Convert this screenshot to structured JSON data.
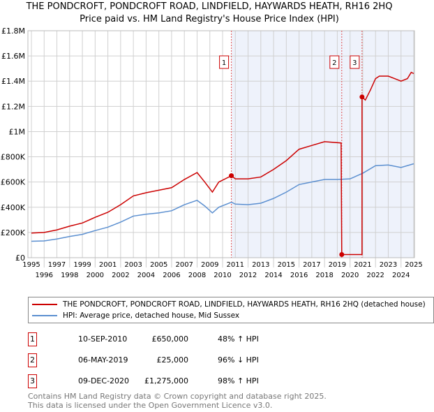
{
  "title_line1": "THE PONDCROFT, PONDCROFT ROAD, LINDFIELD, HAYWARDS HEATH, RH16 2HQ",
  "title_line2": "Price paid vs. HM Land Registry's House Price Index (HPI)",
  "chart_data": {
    "type": "line",
    "title": "Price paid vs. HM Land Registry's House Price Index (HPI)",
    "xlim": [
      1995,
      2025
    ],
    "ylim": [
      0,
      1800000
    ],
    "yticks": [
      {
        "v": 0,
        "label": "£0"
      },
      {
        "v": 200000,
        "label": "£200K"
      },
      {
        "v": 400000,
        "label": "£400K"
      },
      {
        "v": 600000,
        "label": "£600K"
      },
      {
        "v": 800000,
        "label": "£800K"
      },
      {
        "v": 1000000,
        "label": "£1M"
      },
      {
        "v": 1200000,
        "label": "£1.2M"
      },
      {
        "v": 1400000,
        "label": "£1.4M"
      },
      {
        "v": 1600000,
        "label": "£1.6M"
      },
      {
        "v": 1800000,
        "label": "£1.8M"
      }
    ],
    "xticks": [
      "1995",
      "1996",
      "1997",
      "1998",
      "1999",
      "2000",
      "2001",
      "2002",
      "2003",
      "2004",
      "2005",
      "2006",
      "2007",
      "2008",
      "2009",
      "2010",
      "2011",
      "2012",
      "2013",
      "2014",
      "2015",
      "2016",
      "2017",
      "2018",
      "2019",
      "2020",
      "2021",
      "2022",
      "2023",
      "2024",
      "2025"
    ],
    "series": [
      {
        "name": "THE PONDCROFT, PONDCROFT ROAD, LINDFIELD, HAYWARDS HEATH, RH16 2HQ (detached house)",
        "color": "#cc0000",
        "points": [
          [
            1995,
            195000
          ],
          [
            1996,
            200000
          ],
          [
            1997,
            220000
          ],
          [
            1998,
            250000
          ],
          [
            1999,
            275000
          ],
          [
            2000,
            320000
          ],
          [
            2001,
            360000
          ],
          [
            2002,
            420000
          ],
          [
            2003,
            490000
          ],
          [
            2004,
            515000
          ],
          [
            2005,
            535000
          ],
          [
            2006,
            555000
          ],
          [
            2007,
            620000
          ],
          [
            2008,
            675000
          ],
          [
            2008.6,
            600000
          ],
          [
            2009.2,
            520000
          ],
          [
            2009.7,
            600000
          ],
          [
            2010.7,
            650000
          ],
          [
            2011,
            625000
          ],
          [
            2012,
            625000
          ],
          [
            2013,
            640000
          ],
          [
            2014,
            700000
          ],
          [
            2015,
            770000
          ],
          [
            2016,
            860000
          ],
          [
            2017,
            890000
          ],
          [
            2018,
            920000
          ],
          [
            2019.3,
            910000
          ],
          [
            2019.35,
            25000
          ],
          [
            2020.94,
            25000
          ],
          [
            2020.94,
            1275000
          ],
          [
            2021.2,
            1250000
          ],
          [
            2021.6,
            1330000
          ],
          [
            2022,
            1420000
          ],
          [
            2022.3,
            1440000
          ],
          [
            2023,
            1440000
          ],
          [
            2023.5,
            1420000
          ],
          [
            2024,
            1400000
          ],
          [
            2024.5,
            1420000
          ],
          [
            2024.8,
            1470000
          ],
          [
            2025,
            1460000
          ]
        ]
      },
      {
        "name": "HPI: Average price, detached house, Mid Sussex",
        "color": "#5b8fd0",
        "points": [
          [
            1995,
            130000
          ],
          [
            1996,
            133000
          ],
          [
            1997,
            148000
          ],
          [
            1998,
            168000
          ],
          [
            1999,
            185000
          ],
          [
            2000,
            215000
          ],
          [
            2001,
            242000
          ],
          [
            2002,
            282000
          ],
          [
            2003,
            330000
          ],
          [
            2004,
            345000
          ],
          [
            2005,
            355000
          ],
          [
            2006,
            372000
          ],
          [
            2007,
            420000
          ],
          [
            2008,
            455000
          ],
          [
            2008.6,
            410000
          ],
          [
            2009.2,
            355000
          ],
          [
            2009.7,
            400000
          ],
          [
            2010.7,
            440000
          ],
          [
            2011,
            425000
          ],
          [
            2012,
            420000
          ],
          [
            2013,
            432000
          ],
          [
            2014,
            470000
          ],
          [
            2015,
            520000
          ],
          [
            2016,
            580000
          ],
          [
            2017,
            600000
          ],
          [
            2018,
            620000
          ],
          [
            2019,
            620000
          ],
          [
            2020,
            625000
          ],
          [
            2021,
            670000
          ],
          [
            2022,
            730000
          ],
          [
            2023,
            735000
          ],
          [
            2024,
            715000
          ],
          [
            2025,
            745000
          ]
        ]
      }
    ],
    "sales": [
      {
        "label": "1",
        "x": 2010.69,
        "y": 650000
      },
      {
        "label": "2",
        "x": 2019.35,
        "y": 25000
      },
      {
        "label": "3",
        "x": 2020.94,
        "y": 1275000
      }
    ],
    "shaded_from": 2010.69
  },
  "legend": {
    "red": "THE PONDCROFT, PONDCROFT ROAD, LINDFIELD, HAYWARDS HEATH, RH16 2HQ (detached house)",
    "blue": "HPI: Average price, detached house, Mid Sussex"
  },
  "transactions": [
    {
      "n": "1",
      "date": "10-SEP-2010",
      "price": "£650,000",
      "hpi": "48% ↑ HPI"
    },
    {
      "n": "2",
      "date": "06-MAY-2019",
      "price": "£25,000",
      "hpi": "96% ↓ HPI"
    },
    {
      "n": "3",
      "date": "09-DEC-2020",
      "price": "£1,275,000",
      "hpi": "98% ↑ HPI"
    }
  ],
  "footer": {
    "line1": "Contains HM Land Registry data © Crown copyright and database right 2025.",
    "line2": "This data is licensed under the Open Government Licence v3.0."
  }
}
